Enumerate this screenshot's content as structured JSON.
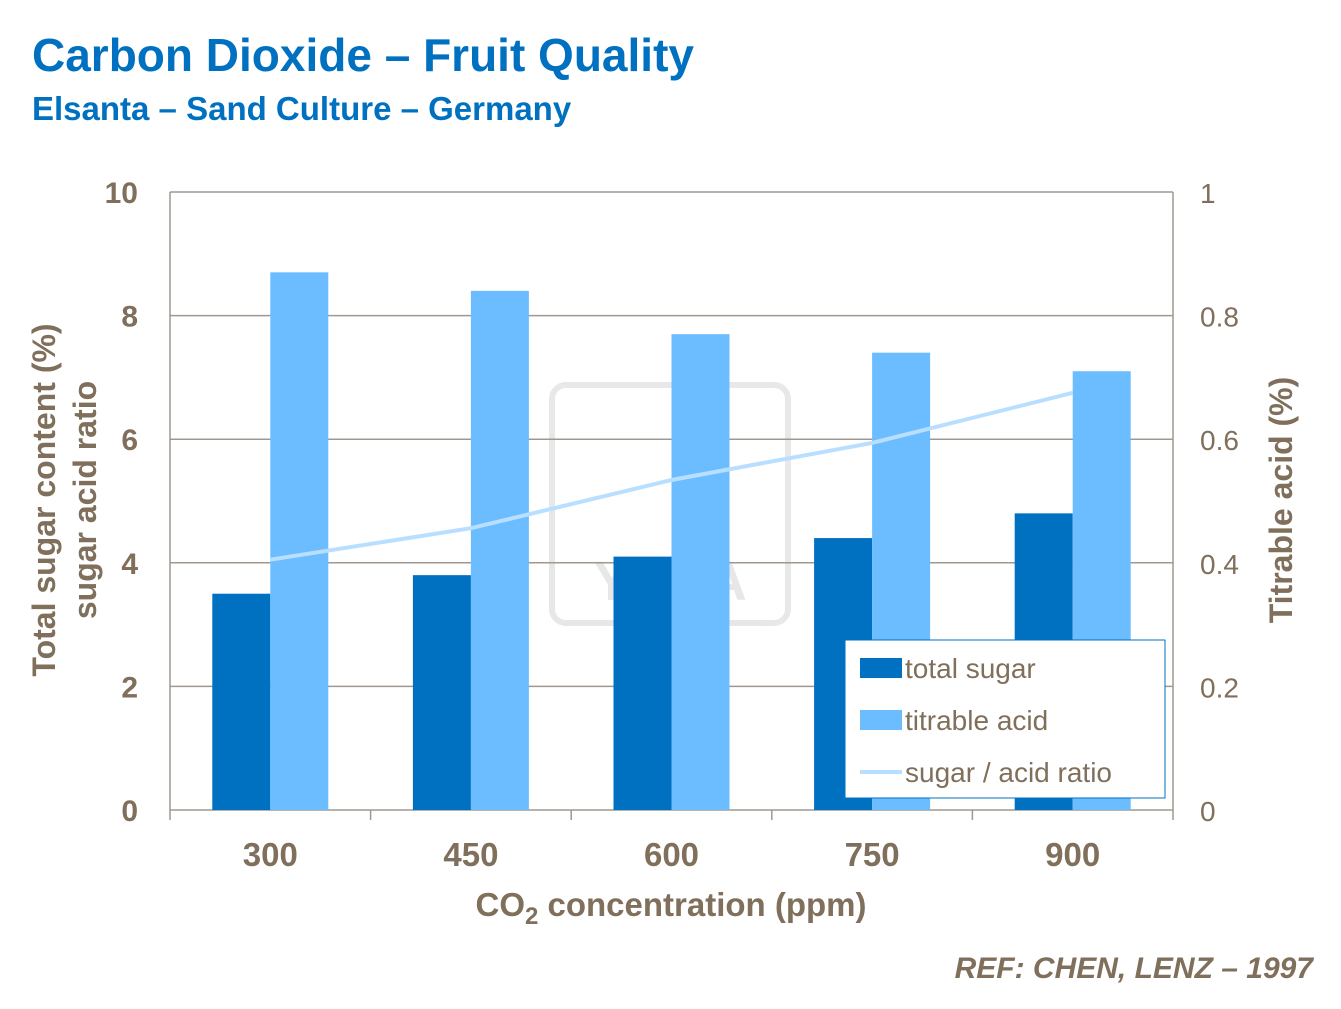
{
  "title": "Carbon Dioxide – Fruit Quality",
  "subtitle": "Elsanta – Sand Culture – Germany",
  "reference": "REF: CHEN, LENZ – 1997",
  "watermark": "YARA",
  "colors": {
    "total_sugar": "#0070C0",
    "titrable_acid": "#6BBDFF",
    "ratio": "#B8DFFF",
    "axis_text": "#7F6F5B",
    "title": "#0070C0"
  },
  "chart_data": {
    "type": "bar",
    "categories": [
      "300",
      "450",
      "600",
      "750",
      "900"
    ],
    "xlabel_main": "CO",
    "xlabel_sub": "2",
    "xlabel_rest": " concentration (ppm)",
    "ylabel_line1": "Total sugar content (%)",
    "ylabel_line2": "sugar acid ratio",
    "y2label": "Titrable acid (%)",
    "ylim": [
      0,
      10
    ],
    "y2lim": [
      0,
      1
    ],
    "yticks": [
      "0",
      "2",
      "4",
      "6",
      "8",
      "10"
    ],
    "y2ticks": [
      "0",
      "0.2",
      "0.4",
      "0.6",
      "0.8",
      "1"
    ],
    "grid": true,
    "legend_position": "bottom-right",
    "series": [
      {
        "name": "total sugar",
        "type": "bar",
        "axis": "left",
        "values": [
          3.5,
          3.8,
          4.1,
          4.4,
          4.8
        ]
      },
      {
        "name": "titrable acid",
        "type": "bar",
        "axis": "right",
        "values": [
          0.87,
          0.84,
          0.77,
          0.74,
          0.71
        ]
      },
      {
        "name": "sugar / acid ratio",
        "type": "line",
        "axis": "left",
        "values": [
          4.05,
          4.56,
          5.34,
          5.94,
          6.75
        ]
      }
    ]
  }
}
